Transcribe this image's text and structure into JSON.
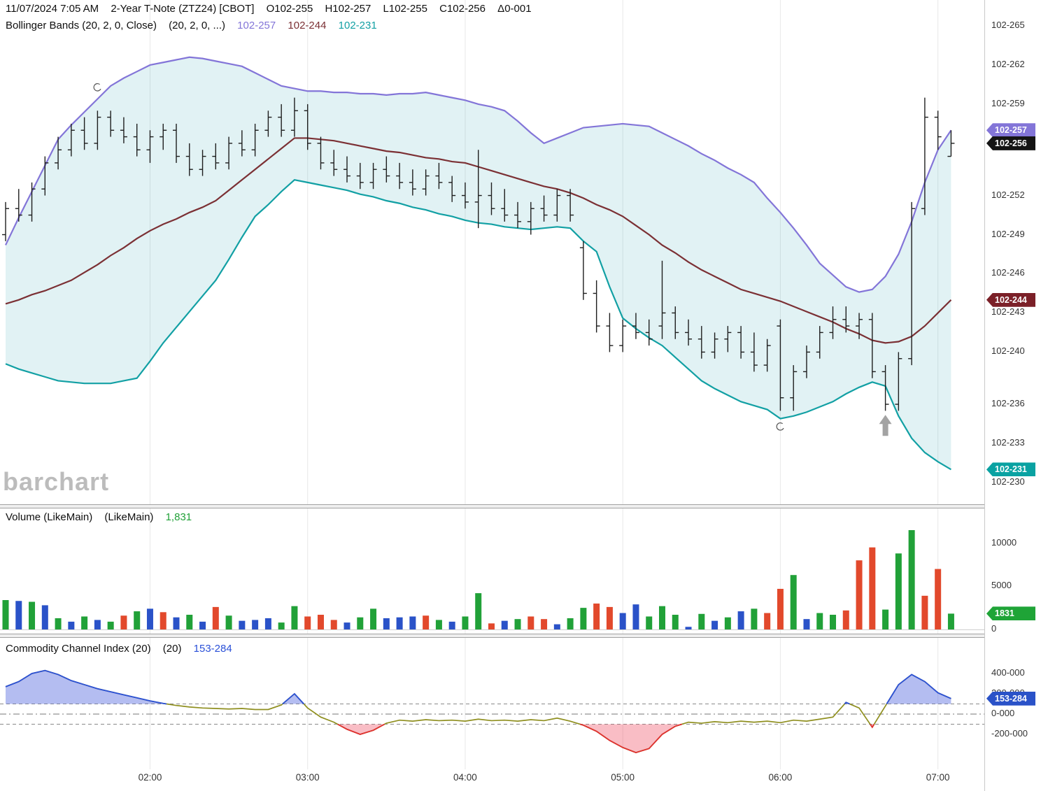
{
  "header": {
    "timestamp": "11/07/2024 7:05 AM",
    "symbol": "2-Year T-Note (ZTZ24) [CBOT]",
    "open": "O102-255",
    "high": "H102-257",
    "low": "L102-255",
    "close": "C102-256",
    "change": "Δ0-001"
  },
  "bollinger_legend": {
    "title": "Bollinger Bands (20, 2, 0, Close)",
    "params": "(20, 2, 0, ...)",
    "upper": "102-257",
    "middle": "102-244",
    "lower": "102-231"
  },
  "volume_legend": {
    "title": "Volume (LikeMain)",
    "params": "(LikeMain)",
    "value": "1,831"
  },
  "cci_legend": {
    "title": "Commodity Channel Index (20)",
    "params": "(20)",
    "value": "153-284"
  },
  "watermark": "barchart",
  "colors": {
    "grid": "#e8e8e8",
    "band_fill": "rgba(24,158,168,0.13)",
    "bb_upper": "#8375d8",
    "bb_middle": "#7b3034",
    "bb_lower": "#12a0a4",
    "bar": "#1e1e1e",
    "vol": {
      "g": "#21a138",
      "r": "#e2492c",
      "b": "#2a52c8"
    },
    "cci_line": "#8f8f1f",
    "cci_hi": "#2a50d8",
    "cci_lo": "#e03030",
    "cci_fill_hi": "rgba(88,108,224,0.45)",
    "cci_fill_lo": "rgba(240,90,110,0.40)",
    "badge": {
      "purple": "#8375d8",
      "black": "#141414",
      "maroon": "#7b2028",
      "teal": "#0aa2a2",
      "green": "#1fa437",
      "blue": "#2a52c8"
    }
  },
  "axis": {
    "price_ticks": [
      {
        "label": "102-265",
        "v": 265
      },
      {
        "label": "102-262",
        "v": 262
      },
      {
        "label": "102-259",
        "v": 259
      },
      {
        "label": "102-252",
        "v": 252
      },
      {
        "label": "102-249",
        "v": 249
      },
      {
        "label": "102-246",
        "v": 246
      },
      {
        "label": "102-243",
        "v": 243
      },
      {
        "label": "102-240",
        "v": 240
      },
      {
        "label": "102-236",
        "v": 236
      },
      {
        "label": "102-233",
        "v": 233
      },
      {
        "label": "102-230",
        "v": 230
      }
    ],
    "price_badges": [
      {
        "label": "102-257",
        "v": 257,
        "color": "purple"
      },
      {
        "label": "102-256",
        "v": 256,
        "color": "black"
      },
      {
        "label": "102-244",
        "v": 244,
        "color": "maroon"
      },
      {
        "label": "102-231",
        "v": 231,
        "color": "teal"
      }
    ],
    "volume_ticks": [
      {
        "label": "10000",
        "v": 10000
      },
      {
        "label": "5000",
        "v": 5000
      },
      {
        "label": "0",
        "v": 0
      }
    ],
    "volume_badge": {
      "label": "1831",
      "v": 1831
    },
    "cci_ticks": [
      {
        "label": "400-000",
        "v": 400
      },
      {
        "label": "200-000",
        "v": 200
      },
      {
        "label": "0-000",
        "v": 0
      },
      {
        "label": "-200-000",
        "v": -200
      }
    ],
    "cci_badge": {
      "label": "153-284",
      "v": 153.284
    },
    "time_labels": [
      {
        "label": "02:00",
        "i": 11
      },
      {
        "label": "03:00",
        "i": 23
      },
      {
        "label": "04:00",
        "i": 35
      },
      {
        "label": "05:00",
        "i": 47
      },
      {
        "label": "06:00",
        "i": 59
      },
      {
        "label": "07:00",
        "i": 71
      }
    ]
  },
  "annotations": {
    "up_arrow": {
      "bar_index": 67,
      "price_code": 235.4
    },
    "arc_marks": [
      {
        "bar_index": 7,
        "price_code": 260.3
      },
      {
        "bar_index": 59,
        "price_code": 234.3
      }
    ]
  },
  "chart_data": [
    {
      "type": "ohlc",
      "name": "price-with-bollinger-bands",
      "symbol": "2-Year T-Note (ZTZ24) [CBOT]",
      "interval": "5min",
      "start_time": "01:05",
      "units": "price codes are the 32nds part of 102-XXX",
      "ylim_codes": [
        230,
        265
      ],
      "bars": [
        [
          249.0,
          251.5,
          248.5,
          251.0
        ],
        [
          251.0,
          252.5,
          250.0,
          250.5
        ],
        [
          250.5,
          253.0,
          250.0,
          252.5
        ],
        [
          252.5,
          255.0,
          252.0,
          254.5
        ],
        [
          254.5,
          256.5,
          254.0,
          255.5
        ],
        [
          255.5,
          257.5,
          255.0,
          257.0
        ],
        [
          257.0,
          258.0,
          255.5,
          256.0
        ],
        [
          256.0,
          258.5,
          255.5,
          258.0
        ],
        [
          258.0,
          258.5,
          256.5,
          257.0
        ],
        [
          257.0,
          258.0,
          256.0,
          256.5
        ],
        [
          256.5,
          257.5,
          255.0,
          255.5
        ],
        [
          255.5,
          257.0,
          254.5,
          256.5
        ],
        [
          256.5,
          257.5,
          255.5,
          257.0
        ],
        [
          257.0,
          257.5,
          254.5,
          255.0
        ],
        [
          255.0,
          256.0,
          253.5,
          254.0
        ],
        [
          254.0,
          255.5,
          253.5,
          255.0
        ],
        [
          255.0,
          256.0,
          254.0,
          254.5
        ],
        [
          254.5,
          256.5,
          254.0,
          256.0
        ],
        [
          256.0,
          257.0,
          255.0,
          255.5
        ],
        [
          255.5,
          257.5,
          255.0,
          257.0
        ],
        [
          257.0,
          258.5,
          256.5,
          258.0
        ],
        [
          258.0,
          259.0,
          256.5,
          257.0
        ],
        [
          257.0,
          259.5,
          256.5,
          258.5
        ],
        [
          258.5,
          259.0,
          255.5,
          256.0
        ],
        [
          256.0,
          256.5,
          254.0,
          254.5
        ],
        [
          254.5,
          255.5,
          253.5,
          254.0
        ],
        [
          254.0,
          255.0,
          253.0,
          253.5
        ],
        [
          253.5,
          254.5,
          252.5,
          253.0
        ],
        [
          253.0,
          254.5,
          252.5,
          254.0
        ],
        [
          254.0,
          255.0,
          253.0,
          253.5
        ],
        [
          253.5,
          254.5,
          252.5,
          253.0
        ],
        [
          253.0,
          254.0,
          252.0,
          252.5
        ],
        [
          252.5,
          254.0,
          252.0,
          253.5
        ],
        [
          253.5,
          254.5,
          252.5,
          253.0
        ],
        [
          253.0,
          253.5,
          251.5,
          252.0
        ],
        [
          252.0,
          253.0,
          251.0,
          251.5
        ],
        [
          251.5,
          255.5,
          249.5,
          252.0
        ],
        [
          252.0,
          253.0,
          250.5,
          251.0
        ],
        [
          251.0,
          252.5,
          250.0,
          250.5
        ],
        [
          250.5,
          251.5,
          249.5,
          250.0
        ],
        [
          250.0,
          251.5,
          249.0,
          251.0
        ],
        [
          251.0,
          252.0,
          250.0,
          250.5
        ],
        [
          250.5,
          252.5,
          250.0,
          252.0
        ],
        [
          252.0,
          252.5,
          250.0,
          250.5
        ],
        [
          248.0,
          248.5,
          244.0,
          244.5
        ],
        [
          244.5,
          245.5,
          241.5,
          242.0
        ],
        [
          242.0,
          243.0,
          240.0,
          240.5
        ],
        [
          240.5,
          242.5,
          240.0,
          242.0
        ],
        [
          242.0,
          243.0,
          241.0,
          241.5
        ],
        [
          241.5,
          242.5,
          240.5,
          241.0
        ],
        [
          242.0,
          247.0,
          241.0,
          243.0
        ],
        [
          243.0,
          243.5,
          241.0,
          241.5
        ],
        [
          241.5,
          242.5,
          240.5,
          241.0
        ],
        [
          241.0,
          242.0,
          239.5,
          240.0
        ],
        [
          240.0,
          241.5,
          239.5,
          241.0
        ],
        [
          241.0,
          242.0,
          240.0,
          241.5
        ],
        [
          241.5,
          242.0,
          239.5,
          240.0
        ],
        [
          240.0,
          241.5,
          238.5,
          239.0
        ],
        [
          239.0,
          241.0,
          238.5,
          240.5
        ],
        [
          242.0,
          242.5,
          235.5,
          236.5
        ],
        [
          236.5,
          239.0,
          235.5,
          238.5
        ],
        [
          238.5,
          240.5,
          238.0,
          240.0
        ],
        [
          240.0,
          242.0,
          239.5,
          241.5
        ],
        [
          241.5,
          243.5,
          241.0,
          242.5
        ],
        [
          242.5,
          243.5,
          241.5,
          242.0
        ],
        [
          242.0,
          243.0,
          241.0,
          242.5
        ],
        [
          242.5,
          243.0,
          238.0,
          238.5
        ],
        [
          238.5,
          239.0,
          235.5,
          236.0
        ],
        [
          236.0,
          240.0,
          235.5,
          239.5
        ],
        [
          239.5,
          251.5,
          239.0,
          251.0
        ],
        [
          251.0,
          259.5,
          250.5,
          258.0
        ],
        [
          258.0,
          258.5,
          255.5,
          256.5
        ],
        [
          255.0,
          257.0,
          255.0,
          256.0
        ]
      ],
      "bb_upper": [
        248.2,
        250.3,
        252.3,
        254.3,
        256.3,
        257.4,
        258.4,
        259.4,
        260.4,
        261.0,
        261.5,
        262.0,
        262.2,
        262.4,
        262.6,
        262.5,
        262.3,
        262.1,
        261.9,
        261.4,
        260.9,
        260.4,
        260.2,
        260.0,
        260.0,
        259.9,
        259.9,
        259.8,
        259.8,
        259.7,
        259.8,
        259.8,
        259.9,
        259.7,
        259.5,
        259.3,
        259.0,
        258.8,
        258.5,
        257.7,
        256.8,
        256.0,
        256.4,
        256.8,
        257.2,
        257.3,
        257.4,
        257.5,
        257.4,
        257.3,
        256.8,
        256.3,
        255.8,
        255.2,
        254.7,
        254.1,
        253.6,
        253.0,
        251.8,
        250.7,
        249.5,
        248.2,
        246.8,
        245.9,
        245.0,
        244.6,
        244.8,
        245.8,
        247.5,
        250.0,
        253.0,
        255.5,
        257.0
      ],
      "bb_middle": [
        243.7,
        244.0,
        244.4,
        244.7,
        245.1,
        245.5,
        246.1,
        246.7,
        247.4,
        248.0,
        248.7,
        249.3,
        249.8,
        250.2,
        250.7,
        251.1,
        251.6,
        252.4,
        253.2,
        254.0,
        254.8,
        255.6,
        256.4,
        256.4,
        256.3,
        256.2,
        256.0,
        255.8,
        255.6,
        255.4,
        255.3,
        255.1,
        254.9,
        254.8,
        254.6,
        254.5,
        254.2,
        253.9,
        253.6,
        253.3,
        253.0,
        252.7,
        252.5,
        252.2,
        251.8,
        251.3,
        250.9,
        250.4,
        249.7,
        249.0,
        248.2,
        247.6,
        246.9,
        246.3,
        245.8,
        245.3,
        244.8,
        244.5,
        244.2,
        243.9,
        243.5,
        243.1,
        242.7,
        242.3,
        241.8,
        241.4,
        240.9,
        240.7,
        240.8,
        241.2,
        242.0,
        243.0,
        244.0
      ],
      "bb_lower": [
        239.1,
        238.7,
        238.4,
        238.1,
        237.8,
        237.7,
        237.6,
        237.6,
        237.6,
        237.8,
        238.0,
        239.3,
        240.7,
        241.9,
        243.1,
        244.3,
        245.5,
        247.1,
        248.8,
        250.4,
        251.3,
        252.3,
        253.2,
        253.0,
        252.8,
        252.6,
        252.4,
        252.1,
        251.9,
        251.6,
        251.4,
        251.1,
        250.9,
        250.6,
        250.4,
        250.1,
        249.9,
        249.8,
        249.6,
        249.5,
        249.4,
        249.5,
        249.6,
        249.5,
        248.5,
        247.7,
        245.0,
        242.6,
        241.8,
        241.1,
        240.5,
        239.6,
        238.7,
        237.8,
        237.2,
        236.7,
        236.2,
        235.9,
        235.6,
        234.9,
        235.1,
        235.4,
        235.8,
        236.2,
        236.8,
        237.3,
        237.7,
        237.4,
        235.1,
        233.4,
        232.3,
        231.6,
        231.0
      ]
    },
    {
      "type": "bar",
      "name": "volume",
      "ylim": [
        0,
        12000
      ],
      "values": [
        3400,
        3300,
        3200,
        2800,
        1300,
        900,
        1500,
        1100,
        900,
        1600,
        2100,
        2400,
        2000,
        1400,
        1700,
        900,
        2600,
        1600,
        1000,
        1100,
        1300,
        800,
        2700,
        1500,
        1700,
        1100,
        800,
        1400,
        2400,
        1300,
        1400,
        1500,
        1600,
        1100,
        900,
        1500,
        4200,
        700,
        1000,
        1200,
        1500,
        1200,
        600,
        1300,
        2500,
        3000,
        2600,
        1900,
        2900,
        1500,
        2700,
        1700,
        300,
        1800,
        1000,
        1400,
        2100,
        2400,
        1900,
        4700,
        6300,
        1200,
        1900,
        1700,
        2200,
        8000,
        9500,
        2300,
        8800,
        11500,
        3900,
        7000,
        1831
      ],
      "bar_colors": [
        "g",
        "b",
        "g",
        "b",
        "g",
        "b",
        "g",
        "b",
        "g",
        "r",
        "g",
        "b",
        "r",
        "b",
        "g",
        "b",
        "r",
        "g",
        "b",
        "b",
        "b",
        "g",
        "g",
        "r",
        "r",
        "r",
        "b",
        "g",
        "g",
        "b",
        "b",
        "b",
        "r",
        "g",
        "b",
        "g",
        "g",
        "r",
        "b",
        "g",
        "r",
        "r",
        "b",
        "g",
        "g",
        "r",
        "r",
        "b",
        "b",
        "g",
        "g",
        "g",
        "b",
        "g",
        "b",
        "g",
        "b",
        "g",
        "r",
        "r",
        "g",
        "b",
        "g",
        "g",
        "r",
        "r",
        "r",
        "g",
        "g",
        "g",
        "r",
        "r",
        "g"
      ]
    },
    {
      "type": "line",
      "name": "commodity-channel-index",
      "period": 20,
      "last": 153.284,
      "thresholds": [
        100,
        -100
      ],
      "values": [
        270,
        320,
        400,
        430,
        390,
        330,
        290,
        250,
        220,
        190,
        160,
        130,
        105,
        85,
        70,
        60,
        55,
        50,
        55,
        45,
        45,
        90,
        200,
        60,
        -30,
        -80,
        -150,
        -200,
        -160,
        -90,
        -60,
        -70,
        -55,
        -65,
        -60,
        -70,
        -50,
        -65,
        -60,
        -70,
        -55,
        -65,
        -40,
        -70,
        -110,
        -170,
        -260,
        -330,
        -380,
        -340,
        -200,
        -120,
        -80,
        -90,
        -75,
        -85,
        -70,
        -80,
        -70,
        -85,
        -60,
        -70,
        -50,
        -30,
        115,
        60,
        -130,
        80,
        290,
        390,
        320,
        210,
        153
      ]
    }
  ]
}
